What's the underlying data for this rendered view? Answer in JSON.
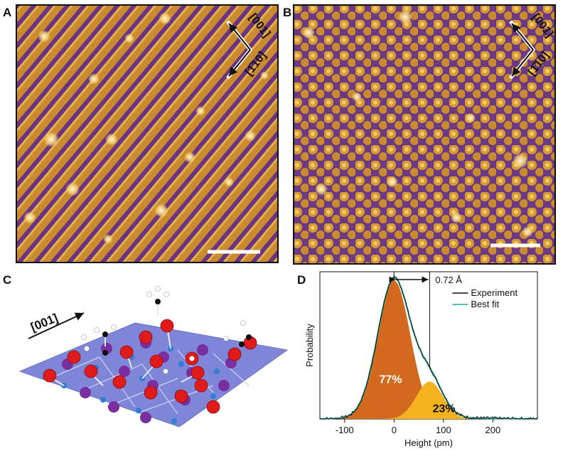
{
  "panels": {
    "a": {
      "label": "A",
      "dir1": "[001]",
      "dir2": "[1̄10]"
    },
    "b": {
      "label": "B",
      "dir1": "[001]",
      "dir2": "[1̄10]"
    },
    "c": {
      "label": "C",
      "dir": "[001]"
    },
    "d": {
      "label": "D"
    }
  },
  "chart_data": {
    "type": "area",
    "xlabel": "Height (pm)",
    "ylabel": "Probability",
    "xlim": [
      -150,
      290
    ],
    "ylim": [
      0,
      1
    ],
    "xticks": [
      -100,
      0,
      100,
      200
    ],
    "xtick_labels": [
      "-100",
      "0",
      "100",
      "200"
    ],
    "legend": [
      {
        "name": "Experiment",
        "color": "#111111"
      },
      {
        "name": "Best fit",
        "color": "#1aa89a"
      }
    ],
    "annotation": {
      "text": "0.72 Å",
      "from": 0,
      "to": 72
    },
    "components": [
      {
        "name": "peak1",
        "center": 0,
        "sigma": 33,
        "amplitude": 1.0,
        "weight_label": "77%",
        "color": "#d2691e"
      },
      {
        "name": "peak2",
        "center": 72,
        "sigma": 27,
        "amplitude": 0.27,
        "weight_label": "23%",
        "color": "#f5b21f"
      }
    ]
  },
  "colors": {
    "afm_dark": "#4a2070",
    "afm_mid": "#b8762a",
    "afm_bright": "#fff2b0",
    "plane": "#7f86d8",
    "oxygen": "#e01b1b",
    "metal": "#7a2fa0",
    "bond_atom": "#2f7fd6"
  }
}
